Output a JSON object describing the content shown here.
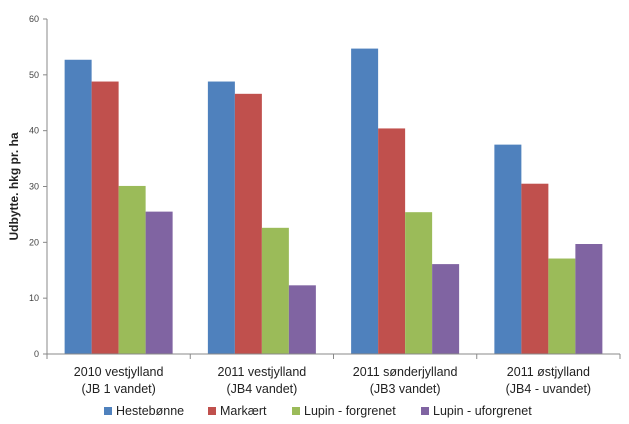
{
  "chart_data": {
    "type": "bar",
    "title": "",
    "xlabel": "",
    "ylabel": "Udbytte. hkg pr. ha",
    "ylim": [
      0,
      60
    ],
    "yticks": [
      0,
      10,
      20,
      30,
      40,
      50,
      60
    ],
    "grid": false,
    "legend_position": "bottom",
    "categories": [
      {
        "line1": "2010 vestjylland",
        "line2": "(JB 1 vandet)"
      },
      {
        "line1": "2011 vestjylland",
        "line2": "(JB4 vandet)"
      },
      {
        "line1": "2011 sønderjylland",
        "line2": "(JB3 vandet)"
      },
      {
        "line1": "2011 østjylland",
        "line2": "(JB4 - uvandet)"
      }
    ],
    "series": [
      {
        "name": "Hestebønne",
        "color": "#4F81BD",
        "values": [
          52.7,
          48.8,
          54.7,
          37.5
        ]
      },
      {
        "name": "Markært",
        "color": "#C0504D",
        "values": [
          48.8,
          46.6,
          40.4,
          30.5
        ]
      },
      {
        "name": "Lupin - forgrenet",
        "color": "#9BBB59",
        "values": [
          30.1,
          22.6,
          25.4,
          17.1
        ]
      },
      {
        "name": "Lupin - uforgrenet",
        "color": "#8064A2",
        "values": [
          25.5,
          12.3,
          16.1,
          19.7
        ]
      }
    ]
  }
}
